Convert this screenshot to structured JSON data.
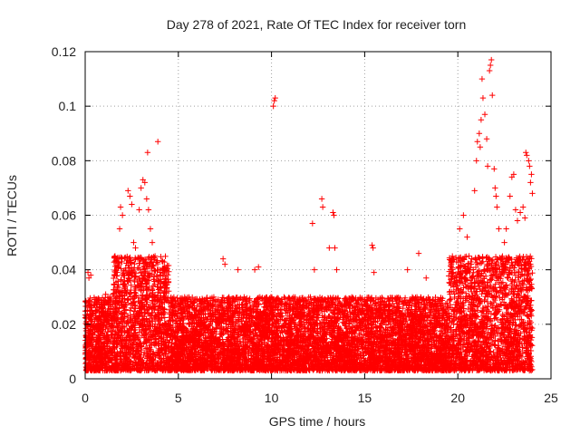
{
  "chart_data": {
    "type": "scatter",
    "title": "Day 278 of 2021, Rate Of TEC Index for receiver torn",
    "xlabel": "GPS time / hours",
    "ylabel": "ROTI / TECUs",
    "xlim": [
      0,
      25
    ],
    "ylim": [
      0,
      0.12
    ],
    "xticks": [
      0,
      5,
      10,
      15,
      20,
      25
    ],
    "yticks": [
      0,
      0.02,
      0.04,
      0.06,
      0.08,
      0.1,
      0.12
    ],
    "xtick_labels": [
      "0",
      "5",
      "10",
      "15",
      "20",
      "25"
    ],
    "ytick_labels": [
      "0",
      "0.02",
      "0.04",
      "0.06",
      "0.08",
      "0.1",
      "0.12"
    ],
    "grid": true,
    "marker": "+",
    "series": [
      {
        "name": "ROTI",
        "color": "#ff0000",
        "density_profile": {
          "description": "approximate envelope of dense point cloud, hours vs ROTI",
          "bands": [
            {
              "x_start": 0.0,
              "x_end": 1.5,
              "low": 0.003,
              "high": 0.03
            },
            {
              "x_start": 1.5,
              "x_end": 4.5,
              "low": 0.003,
              "high": 0.045
            },
            {
              "x_start": 4.5,
              "x_end": 9.5,
              "low": 0.003,
              "high": 0.03
            },
            {
              "x_start": 9.5,
              "x_end": 19.5,
              "low": 0.003,
              "high": 0.03
            },
            {
              "x_start": 19.5,
              "x_end": 24.0,
              "low": 0.003,
              "high": 0.045
            }
          ]
        },
        "points": [
          [
            0.15,
            0.039
          ],
          [
            0.2,
            0.037
          ],
          [
            0.3,
            0.038
          ],
          [
            1.1,
            0.031
          ],
          [
            1.6,
            0.045
          ],
          [
            1.7,
            0.043
          ],
          [
            1.85,
            0.055
          ],
          [
            1.9,
            0.063
          ],
          [
            2.0,
            0.06
          ],
          [
            2.3,
            0.069
          ],
          [
            2.4,
            0.067
          ],
          [
            2.5,
            0.064
          ],
          [
            2.6,
            0.05
          ],
          [
            2.7,
            0.048
          ],
          [
            2.9,
            0.062
          ],
          [
            3.0,
            0.07
          ],
          [
            3.1,
            0.073
          ],
          [
            3.2,
            0.072
          ],
          [
            3.3,
            0.066
          ],
          [
            3.35,
            0.083
          ],
          [
            3.4,
            0.062
          ],
          [
            3.5,
            0.055
          ],
          [
            3.6,
            0.05
          ],
          [
            3.75,
            0.045
          ],
          [
            3.9,
            0.087
          ],
          [
            4.0,
            0.04
          ],
          [
            4.2,
            0.035
          ],
          [
            7.4,
            0.044
          ],
          [
            7.5,
            0.042
          ],
          [
            8.2,
            0.04
          ],
          [
            9.1,
            0.04
          ],
          [
            9.3,
            0.041
          ],
          [
            10.1,
            0.1
          ],
          [
            10.15,
            0.102
          ],
          [
            10.2,
            0.103
          ],
          [
            12.2,
            0.057
          ],
          [
            12.3,
            0.04
          ],
          [
            12.7,
            0.066
          ],
          [
            12.75,
            0.063
          ],
          [
            13.1,
            0.048
          ],
          [
            13.3,
            0.061
          ],
          [
            13.35,
            0.06
          ],
          [
            13.4,
            0.048
          ],
          [
            13.5,
            0.04
          ],
          [
            15.4,
            0.049
          ],
          [
            15.45,
            0.048
          ],
          [
            15.5,
            0.039
          ],
          [
            17.3,
            0.04
          ],
          [
            17.9,
            0.046
          ],
          [
            18.3,
            0.037
          ],
          [
            20.1,
            0.055
          ],
          [
            20.3,
            0.06
          ],
          [
            20.5,
            0.052
          ],
          [
            20.6,
            0.045
          ],
          [
            20.9,
            0.069
          ],
          [
            21.0,
            0.08
          ],
          [
            21.05,
            0.087
          ],
          [
            21.15,
            0.09
          ],
          [
            21.2,
            0.085
          ],
          [
            21.25,
            0.095
          ],
          [
            21.3,
            0.11
          ],
          [
            21.35,
            0.103
          ],
          [
            21.45,
            0.097
          ],
          [
            21.55,
            0.088
          ],
          [
            21.6,
            0.078
          ],
          [
            21.7,
            0.113
          ],
          [
            21.75,
            0.115
          ],
          [
            21.8,
            0.117
          ],
          [
            21.85,
            0.104
          ],
          [
            21.95,
            0.077
          ],
          [
            22.0,
            0.07
          ],
          [
            22.05,
            0.067
          ],
          [
            22.1,
            0.063
          ],
          [
            22.2,
            0.055
          ],
          [
            22.5,
            0.05
          ],
          [
            22.6,
            0.055
          ],
          [
            22.8,
            0.067
          ],
          [
            22.9,
            0.074
          ],
          [
            23.0,
            0.075
          ],
          [
            23.1,
            0.062
          ],
          [
            23.2,
            0.058
          ],
          [
            23.35,
            0.061
          ],
          [
            23.5,
            0.063
          ],
          [
            23.6,
            0.059
          ],
          [
            23.65,
            0.083
          ],
          [
            23.7,
            0.082
          ],
          [
            23.8,
            0.08
          ],
          [
            23.85,
            0.078
          ],
          [
            23.9,
            0.072
          ],
          [
            23.95,
            0.075
          ],
          [
            24.0,
            0.068
          ],
          [
            23.6,
            0.04
          ],
          [
            23.9,
            0.042
          ]
        ]
      }
    ]
  }
}
